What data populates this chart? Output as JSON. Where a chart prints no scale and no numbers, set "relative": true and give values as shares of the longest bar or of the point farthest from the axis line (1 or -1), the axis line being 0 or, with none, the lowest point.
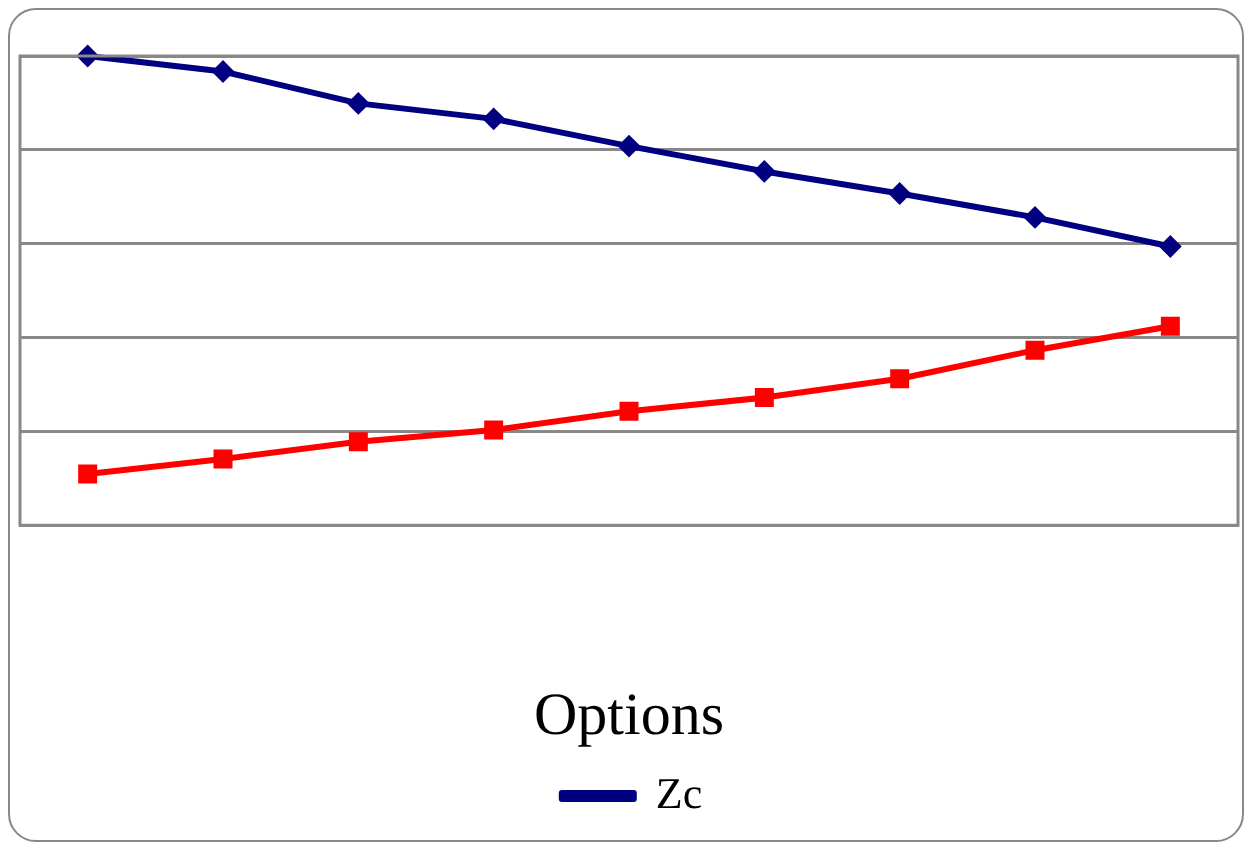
{
  "chart_data": {
    "type": "line",
    "relative": true,
    "xlabel": "Options",
    "categories": [
      null,
      null,
      null,
      null,
      null,
      null,
      null,
      null,
      null
    ],
    "series": [
      {
        "name": "Zc",
        "color": "#000080",
        "marker": "diamond",
        "values": [
          1,
          0.967,
          0.899,
          0.866,
          0.808,
          0.754,
          0.707,
          0.656,
          0.594
        ]
      },
      {
        "color": "#ff0000",
        "marker": "square",
        "values": [
          0.109,
          0.141,
          0.178,
          0.203,
          0.243,
          0.272,
          0.312,
          0.373,
          0.424
        ]
      }
    ],
    "grid": "y",
    "legend": "bottom",
    "line_style": "solid"
  }
}
